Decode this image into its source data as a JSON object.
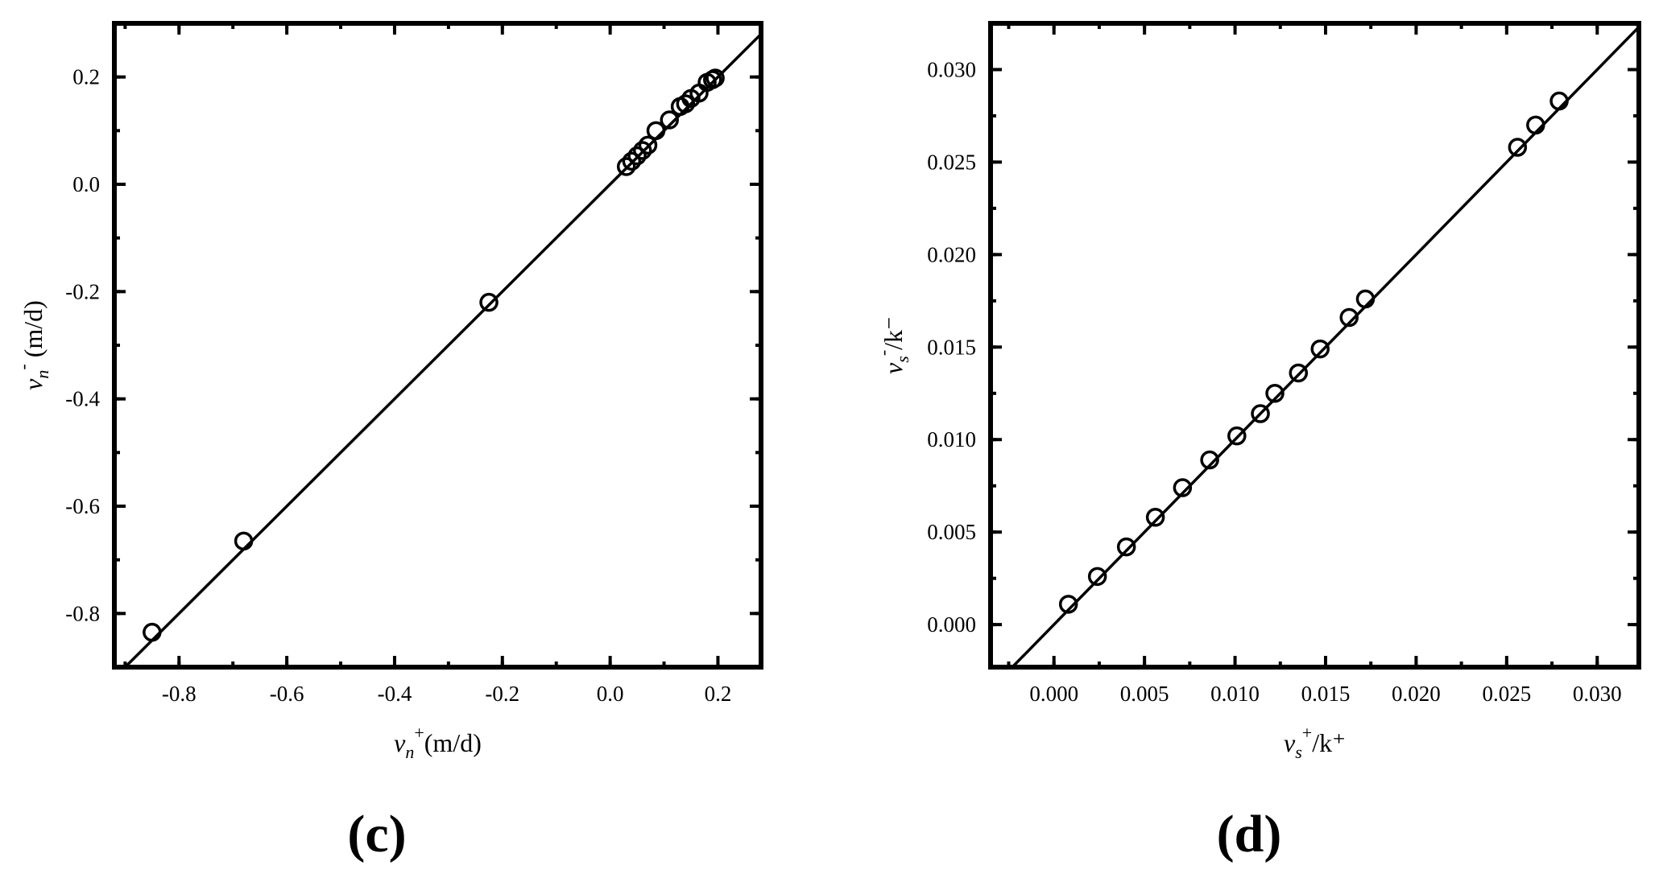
{
  "chart_data": [
    {
      "type": "scatter",
      "panel_label": "(c)",
      "xlabel": {
        "main": "v",
        "sub": "n",
        "sup": "+",
        "unit": "(m/d)"
      },
      "ylabel": {
        "main": "v",
        "sub": "n",
        "sup": "-",
        "unit": " (m/d)"
      },
      "xlim": [
        -0.92,
        0.28
      ],
      "ylim": [
        -0.9,
        0.3
      ],
      "xticks": [
        -0.8,
        -0.6,
        -0.4,
        -0.2,
        0.0,
        0.2
      ],
      "xtick_labels": [
        "-0.8",
        "-0.6",
        "-0.4",
        "-0.2",
        "0.0",
        "0.2"
      ],
      "yticks": [
        -0.8,
        -0.6,
        -0.4,
        -0.2,
        0.0,
        0.2
      ],
      "ytick_labels": [
        "-0.8",
        "-0.6",
        "-0.4",
        "-0.2",
        "0.0",
        "0.2"
      ],
      "line": {
        "type": "identity",
        "from": -0.92,
        "to": 0.28
      },
      "x": [
        -0.85,
        -0.68,
        -0.225,
        0.03,
        0.04,
        0.05,
        0.06,
        0.07,
        0.085,
        0.11,
        0.13,
        0.14,
        0.15,
        0.165,
        0.18,
        0.19,
        0.195
      ],
      "y": [
        -0.835,
        -0.665,
        -0.22,
        0.033,
        0.043,
        0.053,
        0.063,
        0.073,
        0.1,
        0.12,
        0.145,
        0.15,
        0.16,
        0.17,
        0.19,
        0.195,
        0.198
      ],
      "grid": false,
      "legend": "none"
    },
    {
      "type": "scatter",
      "panel_label": "(d)",
      "xlabel": {
        "main": "v",
        "sub": "s",
        "sup": "+",
        "unit": "/k⁺"
      },
      "ylabel": {
        "main": "v",
        "sub": "s",
        "sup": "-",
        "unit": "/k⁻"
      },
      "xlim": [
        -0.0035,
        0.0323
      ],
      "ylim": [
        -0.0023,
        0.0325
      ],
      "xticks": [
        0.0,
        0.005,
        0.01,
        0.015,
        0.02,
        0.025,
        0.03
      ],
      "xtick_labels": [
        "0.000",
        "0.005",
        "0.010",
        "0.015",
        "0.020",
        "0.025",
        "0.030"
      ],
      "yticks": [
        0.0,
        0.005,
        0.01,
        0.015,
        0.02,
        0.025,
        0.03
      ],
      "ytick_labels": [
        "0.000",
        "0.005",
        "0.010",
        "0.015",
        "0.020",
        "0.025",
        "0.030"
      ],
      "line": {
        "type": "identity",
        "from": -0.0035,
        "to": 0.0323
      },
      "x": [
        0.0008,
        0.0024,
        0.004,
        0.0056,
        0.0071,
        0.0086,
        0.0101,
        0.0114,
        0.0122,
        0.0135,
        0.0147,
        0.0163,
        0.0172,
        0.0256,
        0.0266,
        0.0279
      ],
      "y": [
        0.0011,
        0.0026,
        0.0042,
        0.0058,
        0.0074,
        0.0089,
        0.0102,
        0.0114,
        0.0125,
        0.0136,
        0.0149,
        0.0166,
        0.0176,
        0.0258,
        0.027,
        0.0283
      ],
      "grid": false,
      "legend": "none"
    }
  ]
}
